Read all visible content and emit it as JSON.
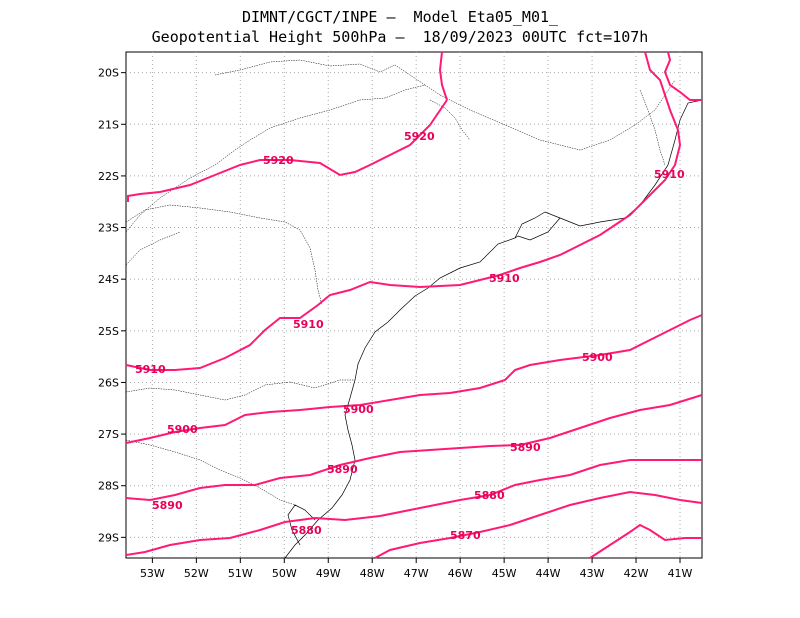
{
  "header": {
    "line1": "DIMNT/CGCT/INPE –  Model Eta05_M01_",
    "line2": "Geopotential Height 500hPa –  18/09/2023 00UTC fct=107h"
  },
  "map": {
    "lon_range": [
      -53.6,
      -40.5
    ],
    "lat_range": [
      -29.4,
      -19.6
    ],
    "grid": "dotted"
  },
  "axes": {
    "lon_labels": [
      "53W",
      "52W",
      "51W",
      "50W",
      "49W",
      "48W",
      "47W",
      "46W",
      "45W",
      "44W",
      "43W",
      "42W",
      "41W"
    ],
    "lat_labels": [
      "20S",
      "21S",
      "22S",
      "23S",
      "24S",
      "25S",
      "26S",
      "27S",
      "28S",
      "29S"
    ]
  },
  "colors": {
    "contour": "#ff1a75",
    "coast": "#000000",
    "grid": "#aaaaaa"
  },
  "contours": [
    {
      "value": 5920,
      "labels": [
        "5920",
        "5920"
      ]
    },
    {
      "value": 5910,
      "labels": [
        "5910",
        "5910",
        "5910",
        "5910"
      ]
    },
    {
      "value": 5900,
      "labels": [
        "5900",
        "5900",
        "5900"
      ]
    },
    {
      "value": 5890,
      "labels": [
        "5890",
        "5890",
        "5890"
      ]
    },
    {
      "value": 5880,
      "labels": [
        "5880",
        "5880"
      ]
    },
    {
      "value": 5870,
      "labels": [
        "5870"
      ]
    }
  ]
}
